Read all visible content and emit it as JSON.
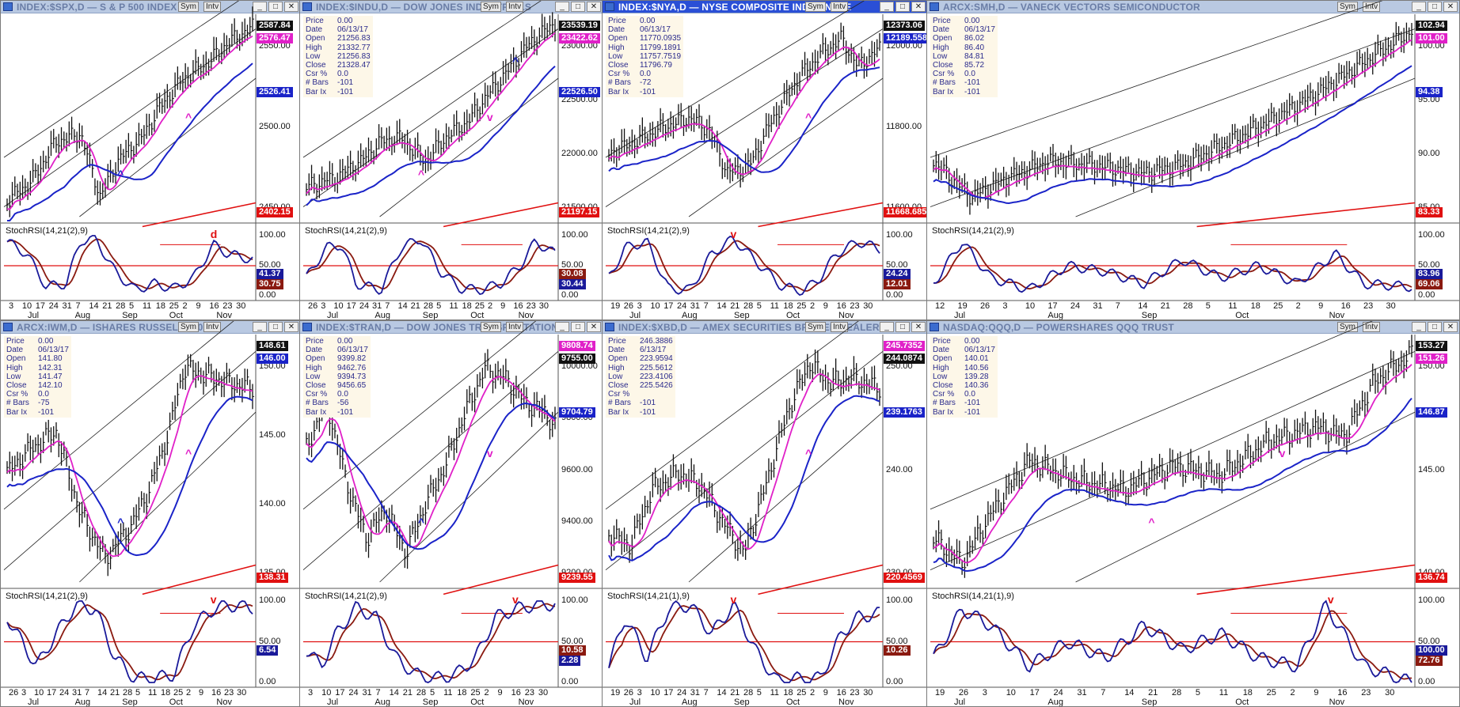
{
  "colors": {
    "price": "#111111",
    "ma_fast": "#e020c8",
    "ma_mid": "#1a23c8",
    "ma_slow": "#e01010",
    "stoch_fast": "#1a1a9a",
    "stoch_slow": "#8a1a10",
    "ref_line": "#e01010"
  },
  "window_buttons": {
    "sym": "Sym",
    "intv": "Intv",
    "minimize": "_",
    "maximize": "□",
    "close": "✕"
  },
  "stoch_levels": [
    "100.00",
    "50.00",
    "0.00"
  ],
  "panels": [
    {
      "title": "INDEX:$SPX,D — S & P 500 INDEX",
      "active": false,
      "info": null,
      "price_axis": [
        "2550.00",
        "2500.00",
        "2450.00"
      ],
      "badges": [
        {
          "text": "2587.84",
          "color": "#111111"
        },
        {
          "text": "2576.47",
          "color": "#e020c8"
        },
        {
          "text": "2526.41",
          "color": "#1a23c8"
        },
        {
          "text": "2402.15",
          "color": "#e01010"
        }
      ],
      "stoch_label": "StochRSI(14,21(2),9)",
      "stoch_badges": [
        {
          "text": "41.37",
          "color": "#1a1a9a"
        },
        {
          "text": "30.75",
          "color": "#8a1a10"
        }
      ],
      "x_ticks": [
        "3",
        "10",
        "17",
        "24",
        "31",
        "7",
        "14",
        "21",
        "28",
        "5",
        "11",
        "18",
        "25",
        "2",
        "9",
        "16",
        "23",
        "30"
      ],
      "months": [
        "Jul",
        "Aug",
        "Sep",
        "Oct",
        "Nov"
      ],
      "markers": [
        {
          "t": "^",
          "c": "#e020c8"
        },
        {
          "t": "^",
          "c": "#1a23c8"
        },
        {
          "t": "d",
          "c": "#e01010"
        }
      ]
    },
    {
      "title": "INDEX:$INDU,D — DOW JONES INDUSTRIALS",
      "active": false,
      "info": [
        [
          "Price",
          "0.00"
        ],
        [
          "Date",
          "06/13/17"
        ],
        [
          "Open",
          "21256.83"
        ],
        [
          "High",
          "21332.77"
        ],
        [
          "Low",
          "21256.83"
        ],
        [
          "Close",
          "21328.47"
        ],
        [
          "Csr %",
          "0.0"
        ],
        [
          "# Bars",
          "-101"
        ],
        [
          "Bar Ix",
          "-101"
        ]
      ],
      "price_axis": [
        "23000.00",
        "22500.00",
        "22000.00",
        "21500.00"
      ],
      "badges": [
        {
          "text": "23539.19",
          "color": "#111111"
        },
        {
          "text": "23422.62",
          "color": "#e020c8"
        },
        {
          "text": "22526.50",
          "color": "#1a23c8"
        },
        {
          "text": "21197.15",
          "color": "#e01010"
        }
      ],
      "stoch_label": "StochRSI(14,21(2),9)",
      "stoch_badges": [
        {
          "text": "30.08",
          "color": "#8a1a10"
        },
        {
          "text": "30.44",
          "color": "#1a1a9a"
        }
      ],
      "x_ticks": [
        "26",
        "3",
        "10",
        "17",
        "24",
        "31",
        "7",
        "14",
        "21",
        "28",
        "5",
        "11",
        "18",
        "25",
        "2",
        "9",
        "16",
        "23",
        "30"
      ],
      "months": [
        "Jul",
        "Aug",
        "Sep",
        "Oct",
        "Nov"
      ],
      "markers": [
        {
          "t": "v",
          "c": "#e020c8"
        },
        {
          "t": "^",
          "c": "#e020c8"
        },
        {
          "t": "^",
          "c": "#1a23c8"
        }
      ]
    },
    {
      "title": "INDEX:$NYA,D — NYSE COMPOSITE INDEX NYSE",
      "active": true,
      "info": [
        [
          "Price",
          "0.00"
        ],
        [
          "Date",
          "06/13/17"
        ],
        [
          "Open",
          "11770.0935"
        ],
        [
          "High",
          "11799.1891"
        ],
        [
          "Low",
          "11757.7519"
        ],
        [
          "Close",
          "11796.79"
        ],
        [
          "Csr %",
          "0.0"
        ],
        [
          "# Bars",
          "-72"
        ],
        [
          "Bar Ix",
          "-101"
        ]
      ],
      "price_axis": [
        "12000.00",
        "11800.00",
        "11600.00"
      ],
      "badges": [
        {
          "text": "12373.06",
          "color": "#111111"
        },
        {
          "text": "12189.558",
          "color": "#1a23c8"
        },
        {
          "text": "11668.685",
          "color": "#e01010"
        }
      ],
      "stoch_label": "StochRSI(14,21(2),9)",
      "stoch_badges": [
        {
          "text": "24.24",
          "color": "#1a1a9a"
        },
        {
          "text": "12.01",
          "color": "#8a1a10"
        }
      ],
      "x_ticks": [
        "19",
        "26",
        "3",
        "10",
        "17",
        "24",
        "31",
        "7",
        "14",
        "21",
        "28",
        "5",
        "11",
        "18",
        "25",
        "2",
        "9",
        "16",
        "23",
        "30"
      ],
      "months": [
        "Jul",
        "Aug",
        "Sep",
        "Oct",
        "Nov"
      ],
      "markers": [
        {
          "t": "^",
          "c": "#e020c8"
        },
        {
          "t": "v",
          "c": "#e01010"
        }
      ]
    },
    {
      "title": "ARCX:SMH,D — VANECK VECTORS SEMICONDUCTOR",
      "active": false,
      "info": [
        [
          "Price",
          "0.00"
        ],
        [
          "Date",
          "06/13/17"
        ],
        [
          "Open",
          "86.02"
        ],
        [
          "High",
          "86.40"
        ],
        [
          "Low",
          "84.81"
        ],
        [
          "Close",
          "85.72"
        ],
        [
          "Csr %",
          "0.0"
        ],
        [
          "# Bars",
          "-101"
        ],
        [
          "Bar Ix",
          "-101"
        ]
      ],
      "price_axis": [
        "100.00",
        "95.00",
        "90.00",
        "85.00"
      ],
      "badges": [
        {
          "text": "102.94",
          "color": "#111111"
        },
        {
          "text": "101.00",
          "color": "#e020c8"
        },
        {
          "text": "94.38",
          "color": "#1a23c8"
        },
        {
          "text": "83.33",
          "color": "#e01010"
        }
      ],
      "stoch_label": "StochRSI(14,21(2),9)",
      "stoch_badges": [
        {
          "text": "83.96",
          "color": "#1a1a9a"
        },
        {
          "text": "69.06",
          "color": "#8a1a10"
        }
      ],
      "x_ticks": [
        "12",
        "19",
        "26",
        "3",
        "10",
        "17",
        "24",
        "31",
        "7",
        "14",
        "21",
        "28",
        "5",
        "11",
        "18",
        "25",
        "2",
        "9",
        "16",
        "23",
        "30"
      ],
      "months": [
        "Jul",
        "Aug",
        "Sep",
        "Oct",
        "Nov"
      ],
      "markers": []
    },
    {
      "title": "ARCX:IWM,D — ISHARES RUSSELL 2000",
      "active": false,
      "info": [
        [
          "Price",
          "0.00"
        ],
        [
          "Date",
          "06/13/17"
        ],
        [
          "Open",
          "141.80"
        ],
        [
          "High",
          "142.31"
        ],
        [
          "Low",
          "141.47"
        ],
        [
          "Close",
          "142.10"
        ],
        [
          "Csr %",
          "0.0"
        ],
        [
          "# Bars",
          "-75"
        ],
        [
          "Bar Ix",
          "-101"
        ]
      ],
      "price_axis": [
        "150.00",
        "145.00",
        "140.00",
        "135.00"
      ],
      "badges": [
        {
          "text": "148.61",
          "color": "#111111"
        },
        {
          "text": "146.00",
          "color": "#1a23c8"
        },
        {
          "text": "138.31",
          "color": "#e01010"
        }
      ],
      "stoch_label": "StochRSI(14,21(2),9)",
      "stoch_badges": [
        {
          "text": "6.54",
          "color": "#1a1a9a"
        }
      ],
      "x_ticks": [
        "26",
        "3",
        "10",
        "17",
        "24",
        "31",
        "7",
        "14",
        "21",
        "28",
        "5",
        "11",
        "18",
        "25",
        "2",
        "9",
        "16",
        "23",
        "30"
      ],
      "months": [
        "Jul",
        "Aug",
        "Sep",
        "Oct",
        "Nov"
      ],
      "markers": [
        {
          "t": "^",
          "c": "#e020c8"
        },
        {
          "t": "^",
          "c": "#1a23c8"
        },
        {
          "t": "v",
          "c": "#e01010"
        }
      ]
    },
    {
      "title": "INDEX:$TRAN,D — DOW JONES TRANSPORTATION",
      "active": false,
      "info": [
        [
          "Price",
          "0.00"
        ],
        [
          "Date",
          "06/13/17"
        ],
        [
          "Open",
          "9399.82"
        ],
        [
          "High",
          "9462.76"
        ],
        [
          "Low",
          "9394.73"
        ],
        [
          "Close",
          "9456.65"
        ],
        [
          "Csr %",
          "0.0"
        ],
        [
          "# Bars",
          "-56"
        ],
        [
          "Bar Ix",
          "-101"
        ]
      ],
      "price_axis": [
        "10000.00",
        "9800.00",
        "9600.00",
        "9400.00",
        "9200.00"
      ],
      "badges": [
        {
          "text": "9808.74",
          "color": "#e020c8"
        },
        {
          "text": "9755.00",
          "color": "#111111"
        },
        {
          "text": "9704.79",
          "color": "#1a23c8"
        },
        {
          "text": "9239.55",
          "color": "#e01010"
        }
      ],
      "stoch_label": "StochRSI(14,21(2),9)",
      "stoch_badges": [
        {
          "text": "10.58",
          "color": "#8a1a10"
        },
        {
          "text": "2.28",
          "color": "#1a1a9a"
        }
      ],
      "x_ticks": [
        "3",
        "10",
        "17",
        "24",
        "31",
        "7",
        "14",
        "21",
        "28",
        "5",
        "11",
        "18",
        "25",
        "2",
        "9",
        "16",
        "23",
        "30"
      ],
      "months": [
        "Jul",
        "Aug",
        "Sep",
        "Oct",
        "Nov"
      ],
      "markers": [
        {
          "t": "v",
          "c": "#e020c8"
        },
        {
          "t": "^",
          "c": "#1a23c8"
        },
        {
          "t": "v",
          "c": "#e01010"
        }
      ]
    },
    {
      "title": "INDEX:$XBD,D — AMEX SECURITIES BROKER/DEALER",
      "active": false,
      "info": [
        [
          "Price",
          "246.3886"
        ],
        [
          "Date",
          "6/13/17"
        ],
        [
          "Open",
          "223.9594"
        ],
        [
          "High",
          "225.5612"
        ],
        [
          "Low",
          "223.4106"
        ],
        [
          "Close",
          "225.5426"
        ],
        [
          "Csr %",
          ""
        ],
        [
          "# Bars",
          "-101"
        ],
        [
          "Bar Ix",
          "-101"
        ]
      ],
      "price_axis": [
        "250.00",
        "240.00",
        "230.00"
      ],
      "badges": [
        {
          "text": "245.7352",
          "color": "#e020c8"
        },
        {
          "text": "244.0874",
          "color": "#111111"
        },
        {
          "text": "239.1763",
          "color": "#1a23c8"
        },
        {
          "text": "220.4569",
          "color": "#e01010"
        }
      ],
      "stoch_label": "StochRSI(14,21(1),9)",
      "stoch_badges": [
        {
          "text": "10.26",
          "color": "#8a1a10"
        }
      ],
      "x_ticks": [
        "19",
        "26",
        "3",
        "10",
        "17",
        "24",
        "31",
        "7",
        "14",
        "21",
        "28",
        "5",
        "11",
        "18",
        "25",
        "2",
        "9",
        "16",
        "23",
        "30"
      ],
      "months": [
        "Jul",
        "Aug",
        "Sep",
        "Oct",
        "Nov"
      ],
      "markers": [
        {
          "t": "^",
          "c": "#e020c8"
        },
        {
          "t": "v",
          "c": "#e01010"
        }
      ]
    },
    {
      "title": "NASDAQ:QQQ,D — POWERSHARES QQQ TRUST",
      "active": false,
      "info": [
        [
          "Price",
          "0.00"
        ],
        [
          "Date",
          "06/13/17"
        ],
        [
          "Open",
          "140.01"
        ],
        [
          "High",
          "140.56"
        ],
        [
          "Low",
          "139.28"
        ],
        [
          "Close",
          "140.36"
        ],
        [
          "Csr %",
          "0.0"
        ],
        [
          "# Bars",
          "-101"
        ],
        [
          "Bar Ix",
          "-101"
        ]
      ],
      "price_axis": [
        "150.00",
        "145.00",
        "140.00"
      ],
      "badges": [
        {
          "text": "153.27",
          "color": "#111111"
        },
        {
          "text": "151.26",
          "color": "#e020c8"
        },
        {
          "text": "146.87",
          "color": "#1a23c8"
        },
        {
          "text": "136.74",
          "color": "#e01010"
        }
      ],
      "stoch_label": "StochRSI(14,21(1),9)",
      "stoch_badges": [
        {
          "text": "100.00",
          "color": "#1a1a9a"
        },
        {
          "text": "72.76",
          "color": "#8a1a10"
        }
      ],
      "x_ticks": [
        "19",
        "26",
        "3",
        "10",
        "17",
        "24",
        "31",
        "7",
        "14",
        "21",
        "28",
        "5",
        "11",
        "18",
        "25",
        "2",
        "9",
        "16",
        "23",
        "30"
      ],
      "months": [
        "Jul",
        "Aug",
        "Sep",
        "Oct",
        "Nov"
      ],
      "markers": [
        {
          "t": "v",
          "c": "#e020c8"
        },
        {
          "t": "^",
          "c": "#e020c8"
        },
        {
          "t": "v",
          "c": "#e01010"
        }
      ]
    }
  ]
}
